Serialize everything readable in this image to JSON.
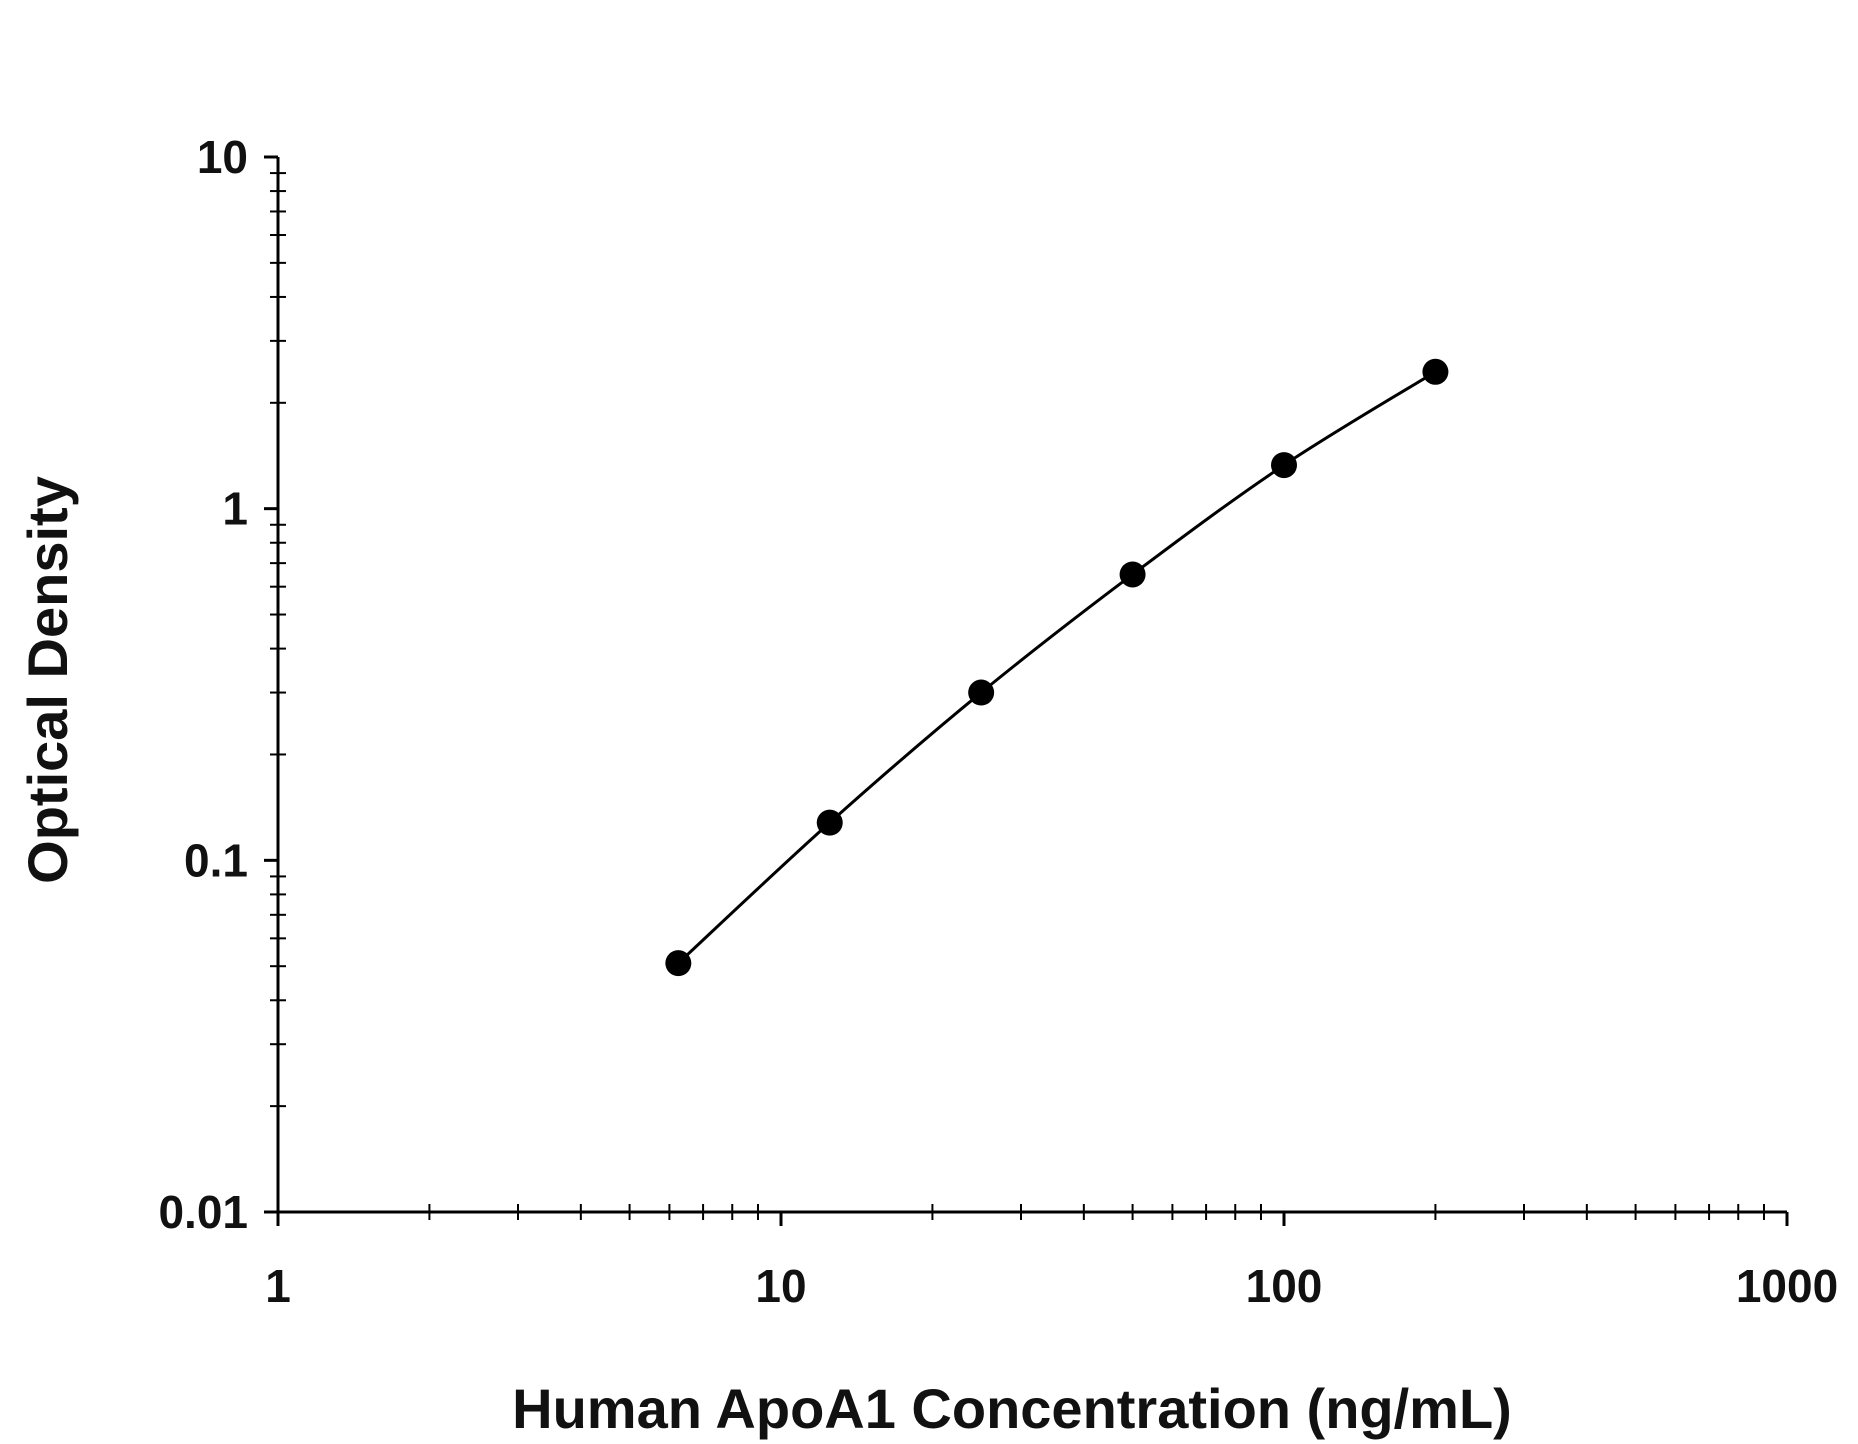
{
  "chart_data": {
    "type": "scatter",
    "title": "",
    "xlabel": "Human ApoA1 Concentration (ng/mL)",
    "ylabel": "Optical Density",
    "x_scale": "log",
    "y_scale": "log",
    "xlim": [
      1,
      1000
    ],
    "ylim": [
      0.01,
      10
    ],
    "x_ticks": [
      1,
      10,
      100,
      1000
    ],
    "x_tick_labels": [
      "1",
      "10",
      "100",
      "1000"
    ],
    "y_ticks": [
      0.01,
      0.1,
      1,
      10
    ],
    "y_tick_labels": [
      "0.01",
      "0.1",
      "1",
      "10"
    ],
    "grid": false,
    "colors": {
      "points": "#000000",
      "curve": "#000000",
      "axes": "#000000"
    },
    "series": [
      {
        "x": [
          6.25,
          12.5,
          25,
          50,
          100,
          200
        ],
        "y": [
          0.051,
          0.128,
          0.3,
          0.65,
          1.33,
          2.45
        ],
        "fit_curve": true
      }
    ]
  }
}
